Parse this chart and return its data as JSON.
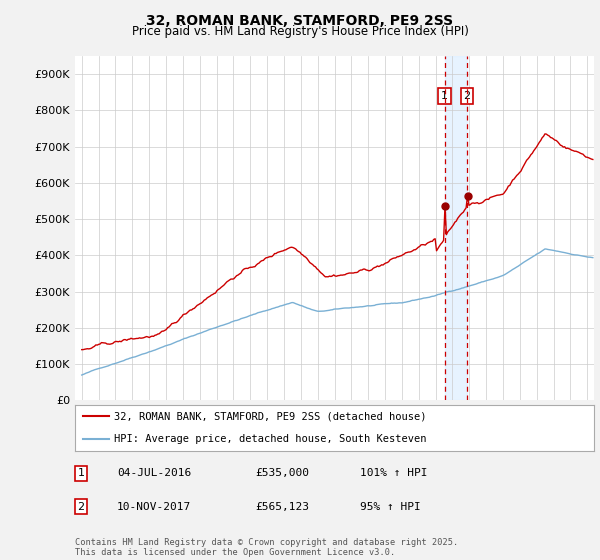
{
  "title": "32, ROMAN BANK, STAMFORD, PE9 2SS",
  "subtitle": "Price paid vs. HM Land Registry's House Price Index (HPI)",
  "legend_line1": "32, ROMAN BANK, STAMFORD, PE9 2SS (detached house)",
  "legend_line2": "HPI: Average price, detached house, South Kesteven",
  "annotation1_label": "1",
  "annotation1_date": "04-JUL-2016",
  "annotation1_price": "£535,000",
  "annotation1_hpi": "101% ↑ HPI",
  "annotation2_label": "2",
  "annotation2_date": "10-NOV-2017",
  "annotation2_price": "£565,123",
  "annotation2_hpi": "95% ↑ HPI",
  "footer": "Contains HM Land Registry data © Crown copyright and database right 2025.\nThis data is licensed under the Open Government Licence v3.0.",
  "line1_color": "#cc0000",
  "line2_color": "#7ab0d4",
  "vline_color": "#cc0000",
  "shade_color": "#ddeeff",
  "dot_color": "#990000",
  "ylim": [
    0,
    950000
  ],
  "yticks": [
    0,
    100000,
    200000,
    300000,
    400000,
    500000,
    600000,
    700000,
    800000,
    900000
  ],
  "ytick_labels": [
    "£0",
    "£100K",
    "£200K",
    "£300K",
    "£400K",
    "£500K",
    "£600K",
    "£700K",
    "£800K",
    "£900K"
  ],
  "background_color": "#f2f2f2",
  "plot_bg_color": "#ffffff",
  "grid_color": "#cccccc",
  "vline1_x": 2016.54,
  "vline2_x": 2017.86,
  "dot1_x": 2016.54,
  "dot1_y": 535000,
  "dot2_x": 2017.86,
  "dot2_y": 565123,
  "xmin": 1994.6,
  "xmax": 2025.4
}
